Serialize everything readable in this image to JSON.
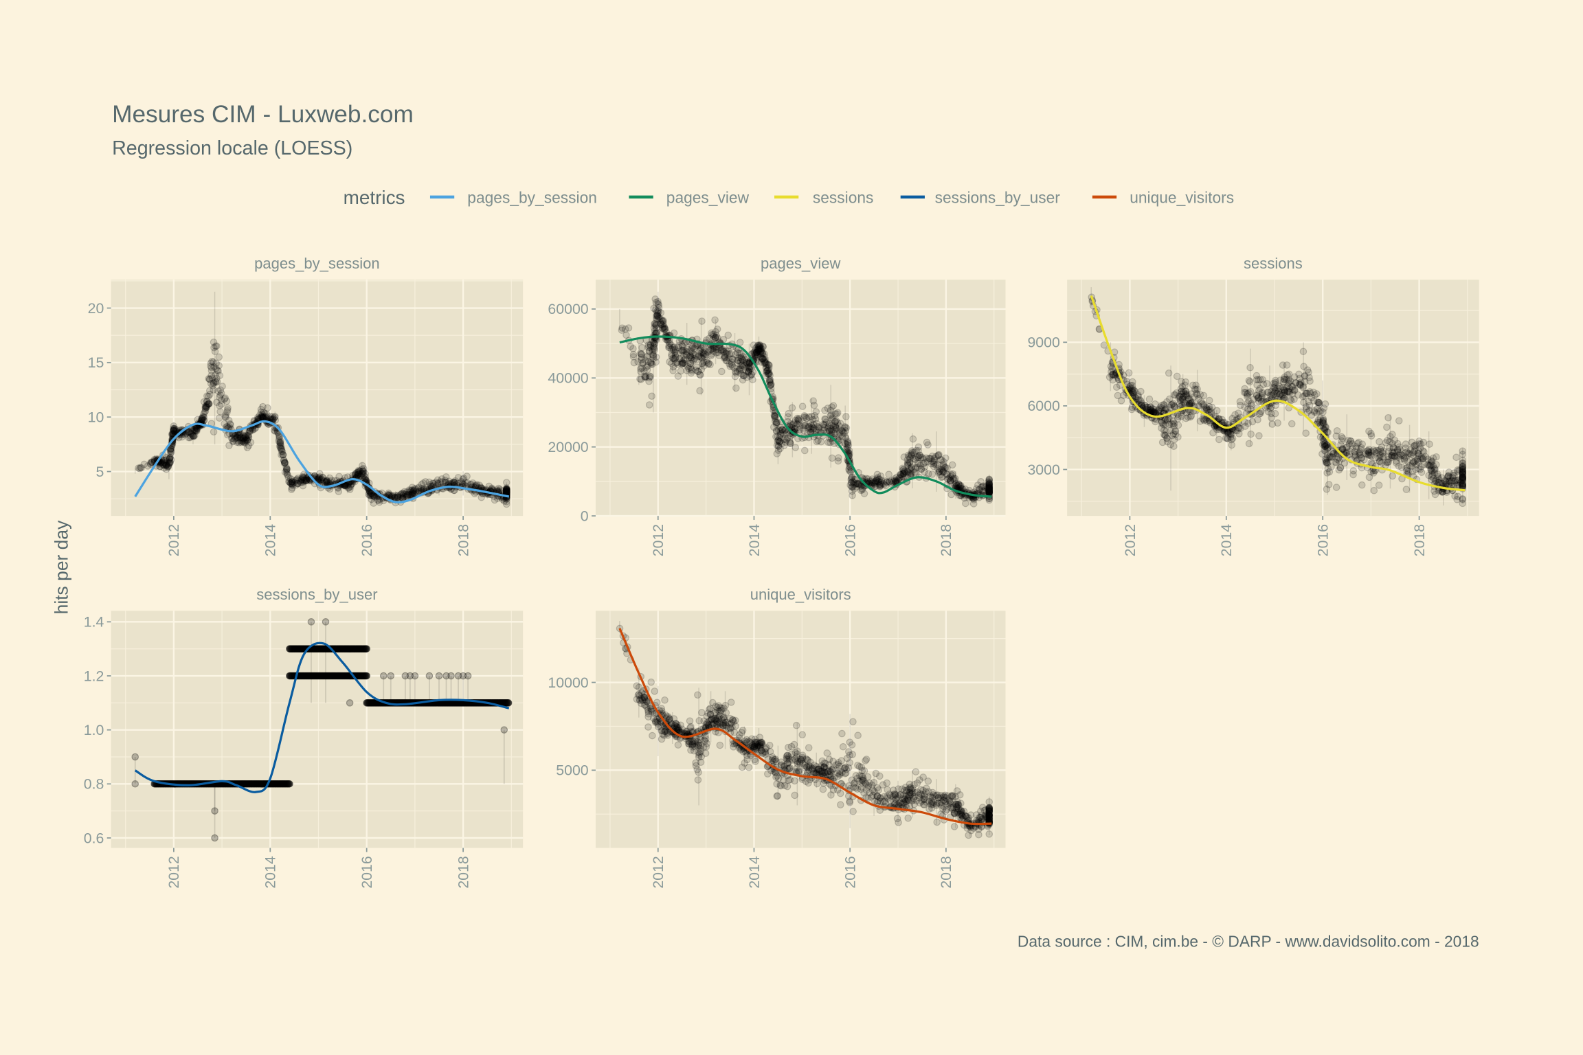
{
  "header": {
    "title": "Mesures CIM - Luxweb.com",
    "subtitle": "Regression locale (LOESS)"
  },
  "legend": {
    "title": "metrics",
    "items": [
      {
        "label": "pages_by_session",
        "color": "#4CA3E0"
      },
      {
        "label": "pages_view",
        "color": "#128C5C"
      },
      {
        "label": "sessions",
        "color": "#E8DC2E"
      },
      {
        "label": "sessions_by_user",
        "color": "#0A5CA0"
      },
      {
        "label": "unique_visitors",
        "color": "#CC4A0A"
      }
    ]
  },
  "y_axis_label": "hits per day",
  "caption": "Data source : CIM, cim.be - © DARP - www.davidsolito.com - 2018",
  "chart_data": [
    {
      "type": "scatter+line",
      "title": "pages_by_session",
      "color": "#4CA3E0",
      "xlim": [
        2010.7,
        2019.24
      ],
      "ylim": [
        0.93,
        22.6
      ],
      "x_ticks": [
        "2012",
        "2014",
        "2016",
        "2018"
      ],
      "y_ticks": [
        "5",
        "10",
        "15",
        "20"
      ],
      "y_tick_values": [
        5,
        10,
        15,
        20
      ],
      "loess": [
        [
          2011.2,
          2.7
        ],
        [
          2011.6,
          5.5
        ],
        [
          2012,
          8.0
        ],
        [
          2012.4,
          9.3
        ],
        [
          2012.7,
          9.2
        ],
        [
          2013.2,
          8.7
        ],
        [
          2013.6,
          9.2
        ],
        [
          2013.9,
          9.6
        ],
        [
          2014.2,
          8.8
        ],
        [
          2014.6,
          6.0
        ],
        [
          2015,
          3.8
        ],
        [
          2015.3,
          3.7
        ],
        [
          2015.7,
          4.3
        ],
        [
          2016,
          3.8
        ],
        [
          2016.3,
          2.8
        ],
        [
          2016.6,
          2.2
        ],
        [
          2016.9,
          2.4
        ],
        [
          2017.3,
          3.2
        ],
        [
          2017.7,
          3.6
        ],
        [
          2018.1,
          3.4
        ],
        [
          2018.5,
          3.1
        ],
        [
          2018.95,
          2.7
        ]
      ],
      "observed_range": [
        [
          2011.2,
          4.8,
          5.3
        ],
        [
          2011.6,
          5.5,
          6.5
        ],
        [
          2011.9,
          4.3,
          7
        ],
        [
          2012.0,
          8,
          9.5
        ],
        [
          2012.4,
          7.5,
          9.3
        ],
        [
          2012.6,
          9.3,
          10.3
        ],
        [
          2012.85,
          7.5,
          21.5
        ],
        [
          2013.2,
          7.3,
          9.3
        ],
        [
          2013.5,
          6.9,
          9.0
        ],
        [
          2013.8,
          9,
          11.2
        ],
        [
          2014.1,
          8.7,
          10.5
        ],
        [
          2014.4,
          3.3,
          4.5
        ],
        [
          2014.8,
          3.8,
          5.0
        ],
        [
          2015.2,
          3.3,
          4.8
        ],
        [
          2015.6,
          3,
          4.5
        ],
        [
          2015.9,
          4.3,
          5.8
        ],
        [
          2016.1,
          2,
          3.5
        ],
        [
          2016.6,
          2,
          3.2
        ],
        [
          2017,
          2.3,
          3.8
        ],
        [
          2017.5,
          2.8,
          4.5
        ],
        [
          2018,
          2.8,
          5
        ],
        [
          2018.5,
          2.5,
          3.7
        ],
        [
          2018.9,
          2,
          4
        ]
      ]
    },
    {
      "type": "scatter+line",
      "title": "pages_view",
      "color": "#128C5C",
      "xlim": [
        2010.7,
        2019.24
      ],
      "ylim": [
        0,
        68490
      ],
      "x_ticks": [
        "2012",
        "2014",
        "2016",
        "2018"
      ],
      "y_ticks": [
        "0",
        "20000",
        "40000",
        "60000"
      ],
      "y_tick_values": [
        0,
        20000,
        40000,
        60000
      ],
      "loess": [
        [
          2011.2,
          50300
        ],
        [
          2011.6,
          51500
        ],
        [
          2012,
          52000
        ],
        [
          2012.5,
          51500
        ],
        [
          2013,
          50000
        ],
        [
          2013.5,
          49800
        ],
        [
          2013.8,
          48000
        ],
        [
          2014.1,
          42000
        ],
        [
          2014.4,
          33000
        ],
        [
          2014.7,
          25500
        ],
        [
          2015,
          23000
        ],
        [
          2015.3,
          23500
        ],
        [
          2015.6,
          23000
        ],
        [
          2015.9,
          18000
        ],
        [
          2016.2,
          11000
        ],
        [
          2016.5,
          7200
        ],
        [
          2016.7,
          6800
        ],
        [
          2017,
          9000
        ],
        [
          2017.4,
          11200
        ],
        [
          2017.8,
          10000
        ],
        [
          2018.2,
          7300
        ],
        [
          2018.6,
          6000
        ],
        [
          2018.95,
          5600
        ]
      ],
      "observed_range": [
        [
          2011.2,
          54000,
          60000
        ],
        [
          2011.6,
          38000,
          50000
        ],
        [
          2011.9,
          30000,
          62000
        ],
        [
          2012.0,
          55000,
          65000
        ],
        [
          2012.3,
          42000,
          53000
        ],
        [
          2012.6,
          38000,
          56000
        ],
        [
          2012.9,
          35000,
          57000
        ],
        [
          2013.2,
          44000,
          57000
        ],
        [
          2013.6,
          36000,
          53000
        ],
        [
          2013.9,
          35000,
          50000
        ],
        [
          2014.1,
          46000,
          52000
        ],
        [
          2014.3,
          38000,
          46000
        ],
        [
          2014.5,
          15000,
          30000
        ],
        [
          2014.8,
          17000,
          33000
        ],
        [
          2015.2,
          18000,
          34000
        ],
        [
          2015.6,
          14000,
          38000
        ],
        [
          2015.9,
          16000,
          32000
        ],
        [
          2016.05,
          5000,
          13000
        ],
        [
          2016.5,
          7000,
          12000
        ],
        [
          2017,
          8000,
          12500
        ],
        [
          2017.3,
          8000,
          24000
        ],
        [
          2017.8,
          7000,
          24500
        ],
        [
          2018.2,
          5000,
          13000
        ],
        [
          2018.5,
          3000,
          8000
        ],
        [
          2018.9,
          4000,
          12000
        ]
      ]
    },
    {
      "type": "scatter+line",
      "title": "sessions",
      "color": "#E8DC2E",
      "xlim": [
        2010.7,
        2019.24
      ],
      "ylim": [
        810,
        11950
      ],
      "x_ticks": [
        "2012",
        "2014",
        "2016",
        "2018"
      ],
      "y_ticks": [
        "3000",
        "6000",
        "9000"
      ],
      "y_tick_values": [
        3000,
        6000,
        9000
      ],
      "loess": [
        [
          2011.2,
          11200
        ],
        [
          2011.6,
          8600
        ],
        [
          2012,
          6430
        ],
        [
          2012.5,
          5500
        ],
        [
          2013.2,
          5900
        ],
        [
          2013.6,
          5560
        ],
        [
          2014,
          4970
        ],
        [
          2014.4,
          5460
        ],
        [
          2015,
          6240
        ],
        [
          2015.5,
          5780
        ],
        [
          2016,
          4700
        ],
        [
          2016.5,
          3500
        ],
        [
          2017,
          3120
        ],
        [
          2017.4,
          2960
        ],
        [
          2018,
          2400
        ],
        [
          2018.5,
          2130
        ],
        [
          2018.95,
          2020
        ]
      ],
      "observed_range": [
        [
          2011.2,
          10700,
          11600
        ],
        [
          2011.6,
          6700,
          9000
        ],
        [
          2012,
          5800,
          7600
        ],
        [
          2012.3,
          5000,
          6500
        ],
        [
          2012.6,
          5000,
          6200
        ],
        [
          2012.85,
          2000,
          7900
        ],
        [
          2013.1,
          5200,
          7500
        ],
        [
          2013.4,
          4800,
          7700
        ],
        [
          2013.8,
          4500,
          5800
        ],
        [
          2014.1,
          3900,
          5600
        ],
        [
          2014.5,
          4100,
          8700
        ],
        [
          2014.9,
          5000,
          7900
        ],
        [
          2015.2,
          5300,
          8000
        ],
        [
          2015.6,
          4800,
          9000
        ],
        [
          2016,
          3000,
          7200
        ],
        [
          2016.1,
          1800,
          5200
        ],
        [
          2016.5,
          2500,
          5600
        ],
        [
          2017,
          1900,
          4800
        ],
        [
          2017.4,
          2100,
          5600
        ],
        [
          2017.8,
          1900,
          5100
        ],
        [
          2018.2,
          1600,
          4800
        ],
        [
          2018.5,
          1300,
          3000
        ],
        [
          2018.9,
          1400,
          4000
        ]
      ]
    },
    {
      "type": "scatter+line",
      "title": "sessions_by_user",
      "color": "#0A5CA0",
      "xlim": [
        2010.7,
        2019.24
      ],
      "ylim": [
        0.563,
        1.441
      ],
      "x_ticks": [
        "2012",
        "2014",
        "2016",
        "2018"
      ],
      "y_ticks": [
        "0.6",
        "0.8",
        "1.0",
        "1.2",
        "1.4"
      ],
      "y_tick_values": [
        0.6,
        0.8,
        1.0,
        1.2,
        1.4
      ],
      "loess": [
        [
          2011.2,
          0.85
        ],
        [
          2011.6,
          0.81
        ],
        [
          2012.3,
          0.795
        ],
        [
          2013,
          0.81
        ],
        [
          2013.3,
          0.795
        ],
        [
          2013.7,
          0.77
        ],
        [
          2014,
          0.82
        ],
        [
          2014.4,
          1.1
        ],
        [
          2014.7,
          1.28
        ],
        [
          2015.1,
          1.32
        ],
        [
          2015.5,
          1.25
        ],
        [
          2016,
          1.14
        ],
        [
          2016.4,
          1.1
        ],
        [
          2016.8,
          1.095
        ],
        [
          2017.5,
          1.11
        ],
        [
          2018,
          1.11
        ],
        [
          2018.5,
          1.1
        ],
        [
          2018.95,
          1.08
        ]
      ],
      "observed_levels": [
        [
          2011.6,
          2014.4,
          0.8
        ],
        [
          2014.4,
          2016,
          1.3
        ],
        [
          2014.4,
          2016,
          1.2
        ],
        [
          2016,
          2018.95,
          1.1
        ]
      ],
      "observed_points": [
        [
          2011.2,
          0.9
        ],
        [
          2011.2,
          0.8
        ],
        [
          2012.85,
          0.7
        ],
        [
          2012.85,
          0.6
        ],
        [
          2014.85,
          1.4
        ],
        [
          2015.15,
          1.4
        ],
        [
          2015.65,
          1.1
        ],
        [
          2018.85,
          1.0
        ],
        [
          2016.35,
          1.2
        ],
        [
          2016.5,
          1.2
        ],
        [
          2016.8,
          1.2
        ],
        [
          2016.9,
          1.2
        ],
        [
          2017.0,
          1.2
        ],
        [
          2017.3,
          1.2
        ],
        [
          2017.5,
          1.2
        ],
        [
          2017.65,
          1.2
        ],
        [
          2017.75,
          1.2
        ],
        [
          2017.9,
          1.2
        ],
        [
          2018.0,
          1.2
        ],
        [
          2018.1,
          1.2
        ]
      ]
    },
    {
      "type": "scatter+line",
      "title": "unique_visitors",
      "color": "#CC4A0A",
      "xlim": [
        2010.7,
        2019.24
      ],
      "ylim": [
        573,
        14080
      ],
      "x_ticks": [
        "2012",
        "2014",
        "2016",
        "2018"
      ],
      "y_ticks": [
        "5000",
        "10000"
      ],
      "y_tick_values": [
        5000,
        10000
      ],
      "loess": [
        [
          2011.2,
          13080
        ],
        [
          2011.6,
          10520
        ],
        [
          2012,
          8300
        ],
        [
          2012.5,
          6920
        ],
        [
          2013.2,
          7360
        ],
        [
          2013.6,
          6730
        ],
        [
          2014,
          5940
        ],
        [
          2014.5,
          5030
        ],
        [
          2015,
          4660
        ],
        [
          2015.5,
          4500
        ],
        [
          2016,
          3720
        ],
        [
          2016.5,
          3000
        ],
        [
          2017,
          2800
        ],
        [
          2017.5,
          2600
        ],
        [
          2018,
          2220
        ],
        [
          2018.5,
          1960
        ],
        [
          2018.95,
          1960
        ]
      ],
      "observed_range": [
        [
          2011.2,
          12800,
          13500
        ],
        [
          2011.6,
          8000,
          10800
        ],
        [
          2012,
          5800,
          9800
        ],
        [
          2012.3,
          6500,
          8300
        ],
        [
          2012.6,
          6300,
          7500
        ],
        [
          2012.85,
          3000,
          9700
        ],
        [
          2013.1,
          6600,
          9500
        ],
        [
          2013.4,
          6200,
          9500
        ],
        [
          2013.8,
          5000,
          7500
        ],
        [
          2014.1,
          5500,
          7400
        ],
        [
          2014.5,
          3300,
          6400
        ],
        [
          2014.9,
          3000,
          7700
        ],
        [
          2015.3,
          4000,
          6000
        ],
        [
          2015.6,
          3500,
          6000
        ],
        [
          2016,
          1700,
          8200
        ],
        [
          2016.5,
          2400,
          4900
        ],
        [
          2017,
          1900,
          4400
        ],
        [
          2017.3,
          2300,
          5000
        ],
        [
          2017.8,
          1900,
          4500
        ],
        [
          2018.2,
          1700,
          4200
        ],
        [
          2018.5,
          1200,
          2500
        ],
        [
          2018.9,
          1300,
          3500
        ]
      ]
    }
  ]
}
